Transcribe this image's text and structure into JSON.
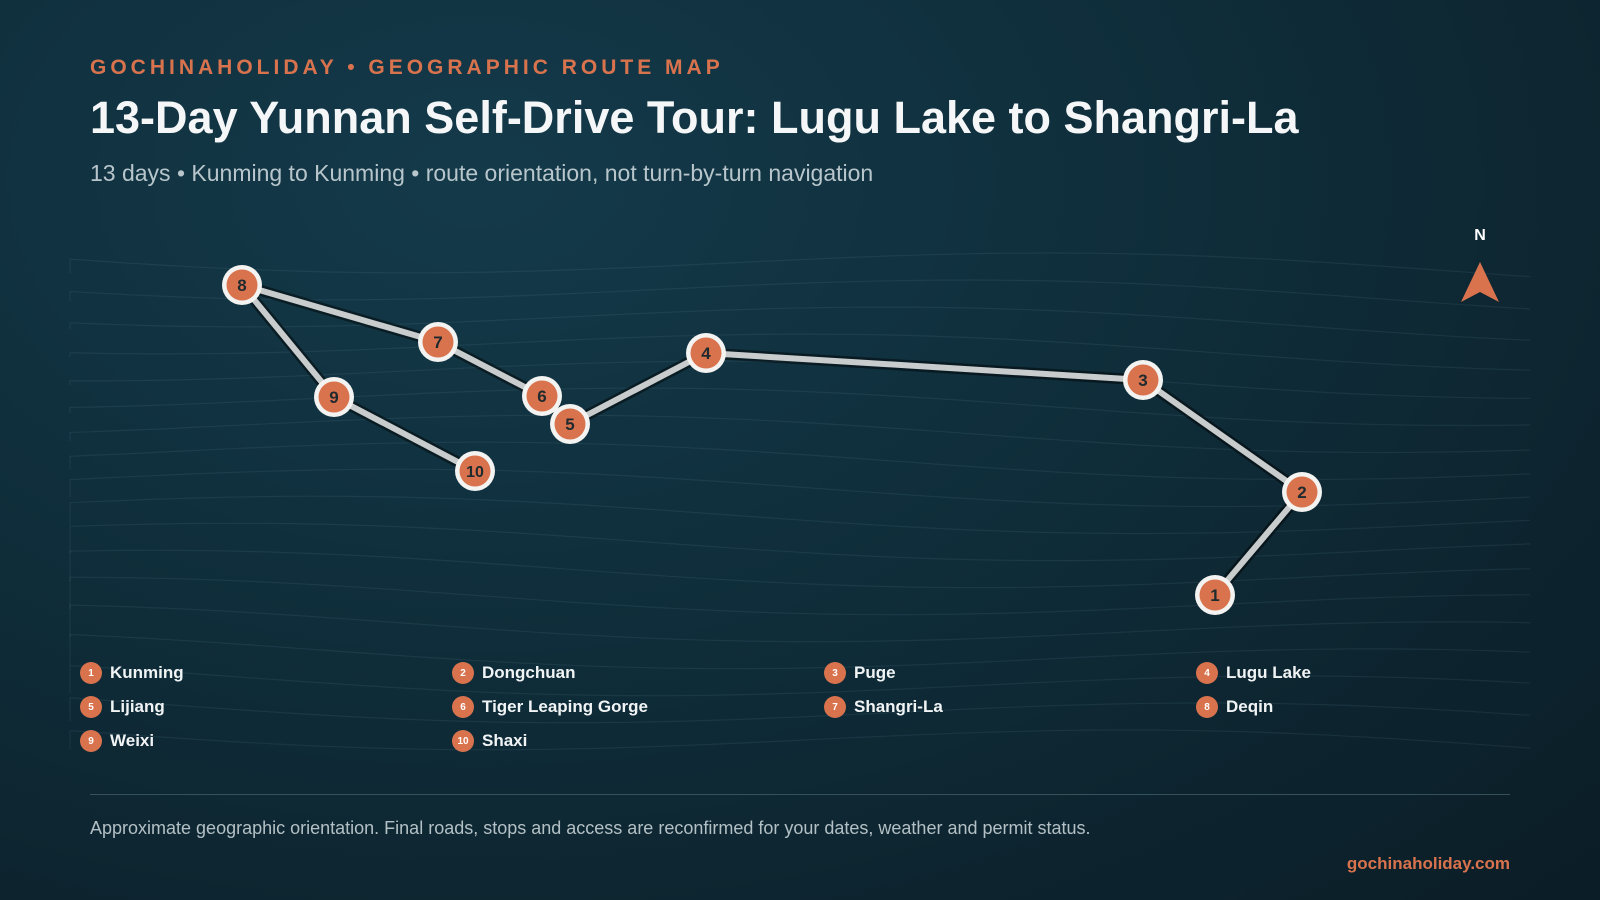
{
  "header": {
    "eyebrow": "GOCHINAHOLIDAY • GEOGRAPHIC ROUTE MAP",
    "title": "13-Day Yunnan Self-Drive Tour: Lugu Lake to Shangri-La",
    "subtitle": "13 days • Kunming to Kunming • route orientation, not turn-by-turn navigation"
  },
  "compass": {
    "label": "N",
    "icon": "north-arrow-icon"
  },
  "colors": {
    "accent": "#d9734e",
    "route": "#c9cccc",
    "background": "#0f2d3a"
  },
  "stops": [
    {
      "number": "1",
      "name": "Kunming"
    },
    {
      "number": "2",
      "name": "Dongchuan"
    },
    {
      "number": "3",
      "name": "Puge"
    },
    {
      "number": "4",
      "name": "Lugu Lake"
    },
    {
      "number": "5",
      "name": "Lijiang"
    },
    {
      "number": "6",
      "name": "Tiger Leaping Gorge"
    },
    {
      "number": "7",
      "name": "Shangri-La"
    },
    {
      "number": "8",
      "name": "Deqin"
    },
    {
      "number": "9",
      "name": "Weixi"
    },
    {
      "number": "10",
      "name": "Shaxi"
    }
  ],
  "footer": {
    "note": "Approximate geographic orientation. Final roads, stops and access are reconfirmed for your dates, weather and permit status.",
    "site": "gochinaholiday.com"
  }
}
